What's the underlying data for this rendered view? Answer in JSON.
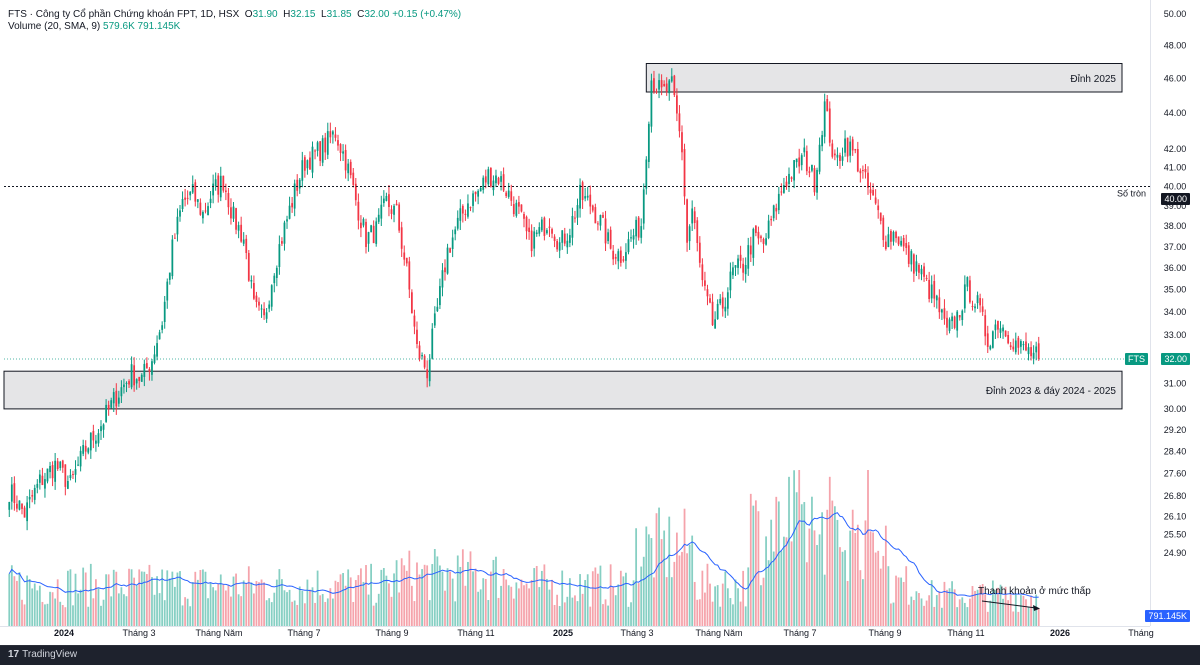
{
  "legend": {
    "symbol_line": "FTS · Công ty Cổ phần Chứng khoán FPT, 1D, HSX",
    "ohlc": {
      "O": "31.90",
      "H": "32.15",
      "L": "31.85",
      "C": "32.00",
      "change": "+0.15 (+0.47%)"
    },
    "volume_line": "Volume (20, SMA, 9)",
    "volume_values": "579.6K  791.145K"
  },
  "chart_data": {
    "type": "candlestick",
    "symbol": "FTS",
    "y_axis_price": {
      "scale": "log",
      "ticks": [
        "50.00",
        "48.00",
        "46.00",
        "44.00",
        "42.00",
        "41.00",
        "40.00",
        "39.00",
        "38.00",
        "37.00",
        "36.00",
        "35.00",
        "34.00",
        "33.00",
        "32.00",
        "31.00",
        "30.00",
        "29.20",
        "28.40",
        "27.60",
        "26.80",
        "26.10",
        "25.50",
        "24.90"
      ],
      "range": [
        24.2,
        50.0
      ]
    },
    "x_axis": {
      "labels": [
        "2024",
        "Tháng 3",
        "Tháng Năm",
        "Tháng 7",
        "Tháng 9",
        "Tháng 11",
        "2025",
        "Tháng 3",
        "Tháng Năm",
        "Tháng 7",
        "Tháng 9",
        "Tháng 11",
        "2026",
        "Tháng"
      ]
    },
    "price_path": [
      [
        0,
        27.0
      ],
      [
        6,
        26.2
      ],
      [
        12,
        27.3
      ],
      [
        18,
        27.9
      ],
      [
        24,
        27.2
      ],
      [
        30,
        28.5
      ],
      [
        36,
        29.4
      ],
      [
        42,
        30.5
      ],
      [
        48,
        31.4
      ],
      [
        52,
        31.2
      ],
      [
        56,
        32.0
      ],
      [
        60,
        33.6
      ],
      [
        64,
        36.9
      ],
      [
        68,
        39.2
      ],
      [
        72,
        39.6
      ],
      [
        76,
        38.6
      ],
      [
        80,
        39.8
      ],
      [
        84,
        40.3
      ],
      [
        88,
        38.4
      ],
      [
        92,
        37.4
      ],
      [
        96,
        34.2
      ],
      [
        100,
        33.6
      ],
      [
        104,
        36.1
      ],
      [
        108,
        37.9
      ],
      [
        112,
        39.7
      ],
      [
        116,
        41.3
      ],
      [
        120,
        41.7
      ],
      [
        124,
        42.2
      ],
      [
        128,
        42.9
      ],
      [
        132,
        41.4
      ],
      [
        136,
        39.3
      ],
      [
        140,
        37.4
      ],
      [
        144,
        37.8
      ],
      [
        148,
        39.2
      ],
      [
        152,
        38.6
      ],
      [
        156,
        35.8
      ],
      [
        160,
        32.4
      ],
      [
        164,
        31.5
      ],
      [
        168,
        34.1
      ],
      [
        172,
        36.8
      ],
      [
        176,
        38.1
      ],
      [
        180,
        39.2
      ],
      [
        184,
        39.7
      ],
      [
        188,
        40.6
      ],
      [
        192,
        40.5
      ],
      [
        196,
        39.6
      ],
      [
        200,
        38.6
      ],
      [
        204,
        37.2
      ],
      [
        208,
        37.7
      ],
      [
        212,
        38.4
      ],
      [
        216,
        37.1
      ],
      [
        220,
        37.9
      ],
      [
        224,
        39.5
      ],
      [
        228,
        39.1
      ],
      [
        232,
        38.2
      ],
      [
        236,
        36.9
      ],
      [
        240,
        36.6
      ],
      [
        244,
        37.4
      ],
      [
        248,
        38.1
      ],
      [
        252,
        46.0
      ],
      [
        256,
        45.1
      ],
      [
        260,
        45.5
      ],
      [
        264,
        42.0
      ],
      [
        266,
        37.2
      ],
      [
        268,
        38.8
      ],
      [
        272,
        35.2
      ],
      [
        276,
        33.5
      ],
      [
        280,
        34.3
      ],
      [
        284,
        35.8
      ],
      [
        288,
        36.1
      ],
      [
        292,
        37.4
      ],
      [
        296,
        37.1
      ],
      [
        300,
        38.6
      ],
      [
        304,
        40.2
      ],
      [
        308,
        40.9
      ],
      [
        312,
        41.6
      ],
      [
        316,
        40.3
      ],
      [
        320,
        44.4
      ],
      [
        324,
        41.1
      ],
      [
        328,
        42.4
      ],
      [
        332,
        41.6
      ],
      [
        336,
        40.2
      ],
      [
        340,
        38.9
      ],
      [
        344,
        37.4
      ],
      [
        348,
        37.7
      ],
      [
        352,
        36.6
      ],
      [
        356,
        36.1
      ],
      [
        360,
        35.2
      ],
      [
        364,
        34.4
      ],
      [
        368,
        33.1
      ],
      [
        372,
        33.8
      ],
      [
        376,
        35.1
      ],
      [
        380,
        34.3
      ],
      [
        384,
        32.8
      ],
      [
        388,
        33.6
      ],
      [
        392,
        33.1
      ],
      [
        396,
        32.5
      ],
      [
        400,
        32.3
      ],
      [
        404,
        32.0
      ]
    ],
    "last_price": {
      "label": "FTS",
      "value": "32.00"
    },
    "round_level": {
      "value": 40.0,
      "label": "Số tròn",
      "value_label": "40.00"
    },
    "zones": [
      {
        "label": "Đỉnh 2025",
        "low": 45.2,
        "high": 46.9
      },
      {
        "label": "Đỉnh 2023 & đáy 2024 - 2025",
        "low": 30.0,
        "high": 31.5
      }
    ],
    "volume": {
      "last_value_label": "791.145K",
      "annotation": "Thanh khoản ở mức thấp"
    },
    "colors": {
      "up": "#089981",
      "down": "#f23645",
      "volume_up": "#86cfc3",
      "volume_down": "#f5a3ab",
      "volume_sma": "#2962ff",
      "zone_fill": "#e0e0e3",
      "zone_stroke": "#131722"
    }
  },
  "footer": {
    "brand_mark": "17",
    "brand": "TradingView"
  }
}
